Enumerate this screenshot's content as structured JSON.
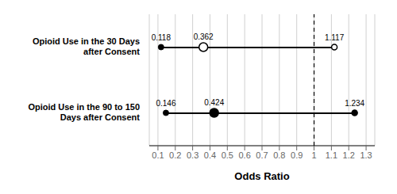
{
  "chart_data": {
    "type": "forest",
    "xlabel": "Odds Ratio",
    "categories": [
      "Opioid Use in the 30 Days\nafter Consent",
      "Opioid Use in the 90 to 150\nDays after Consent"
    ],
    "series": [
      {
        "marker": "open",
        "values": [
          0.362,
          null
        ],
        "ci_low": [
          0.118,
          null
        ],
        "ci_high": [
          1.117,
          null
        ]
      },
      {
        "marker": "filled",
        "values": [
          null,
          0.424
        ],
        "ci_low": [
          null,
          0.146
        ],
        "ci_high": [
          null,
          1.234
        ]
      }
    ],
    "xlim": [
      0.05,
      1.35
    ],
    "xticks": [
      0.1,
      0.2,
      0.3,
      0.4,
      0.5,
      0.6,
      0.7,
      0.8,
      0.9,
      1,
      1.1,
      1.2,
      1.3
    ],
    "reference_line": 1.0,
    "color": "#000000",
    "data_labels": true,
    "grid": true
  }
}
